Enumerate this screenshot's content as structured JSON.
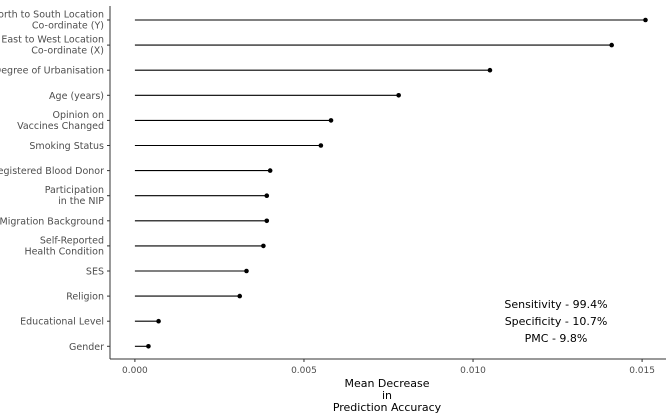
{
  "chart_data": {
    "type": "lollipop",
    "title": "",
    "xlabel": [
      "Mean Decrease",
      "in",
      "Prediction Accuracy"
    ],
    "ylabel": "",
    "xlim": [
      -0.0007,
      0.0158
    ],
    "xticks": [
      "0.000",
      "0.005",
      "0.010",
      "0.015"
    ],
    "xtick_values": [
      0.0,
      0.005,
      0.01,
      0.015
    ],
    "grid": false,
    "categories": [
      [
        "North to South Location",
        "Co-ordinate (Y)"
      ],
      [
        "East to West Location",
        "Co-ordinate (X)"
      ],
      [
        "Degree of Urbanisation"
      ],
      [
        "Age (years)"
      ],
      [
        "Opinion on",
        "Vaccines Changed"
      ],
      [
        "Smoking Status"
      ],
      [
        "Registered Blood Donor"
      ],
      [
        "Participation",
        "in the NIP"
      ],
      [
        "Migration Background"
      ],
      [
        "Self-Reported",
        "Health Condition"
      ],
      [
        "SES"
      ],
      [
        "Religion"
      ],
      [
        "Educational Level"
      ],
      [
        "Gender"
      ]
    ],
    "values": [
      0.0151,
      0.0141,
      0.0105,
      0.0078,
      0.0058,
      0.0055,
      0.004,
      0.0039,
      0.0039,
      0.0038,
      0.0033,
      0.0031,
      0.0007,
      0.0004
    ],
    "annotations": [
      "Sensitivity - 99.4%",
      "Specificity - 10.7%",
      "PMC - 9.8%"
    ],
    "colors": {
      "line": "#000000",
      "point": "#000000",
      "axis": "#333333",
      "text": "#4d4d4d"
    }
  }
}
